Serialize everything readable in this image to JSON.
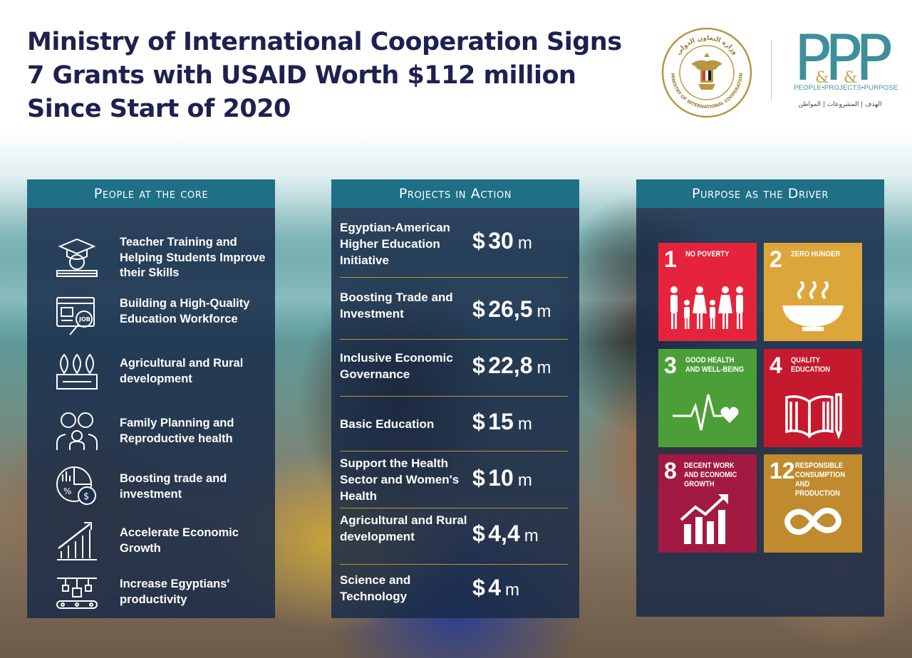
{
  "headline": "Ministry of International Cooperation Signs 7 Grants with USAID Worth $112 million Since Start of 2020",
  "seal": {
    "text_top": "وزارة التعاون الدولي",
    "text_bottom": "MINISTRY OF INTERNATIONAL COOPERATION"
  },
  "ppp_logo": {
    "letters": "PPP",
    "tagline": "PEOPLE•PROJECTS•PURPOSE",
    "arabic": "الهدف | المشروعات | المواطن",
    "color": "#3e8f99"
  },
  "panels": {
    "people": {
      "title": "People at the core",
      "items": [
        {
          "icon": "teacher-training-icon",
          "text": "Teacher Training and Helping Students Improve their Skills"
        },
        {
          "icon": "job-search-icon",
          "text": "Building a High-Quality Education Workforce"
        },
        {
          "icon": "agriculture-icon",
          "text": "Agricultural and Rural development"
        },
        {
          "icon": "family-icon",
          "text": "Family Planning and Reproductive health"
        },
        {
          "icon": "trade-investment-icon",
          "text": "Boosting trade and investment"
        },
        {
          "icon": "growth-chart-icon",
          "text": "Accelerate Economic Growth"
        },
        {
          "icon": "productivity-icon",
          "text": "Increase Egyptians' productivity"
        }
      ]
    },
    "projects": {
      "title": "Projects in Action",
      "currency": "$",
      "unit": "m",
      "rows": [
        {
          "name": "Egyptian-American Higher Education Initiative",
          "amount": "30"
        },
        {
          "name": "Boosting Trade and Investment",
          "amount": "26,5"
        },
        {
          "name": "Inclusive Economic Governance",
          "amount": "22,8"
        },
        {
          "name": "Basic Education",
          "amount": "15"
        },
        {
          "name": "Support the Health Sector and Women's Health",
          "amount": "10"
        },
        {
          "name": "Agricultural and Rural development",
          "amount": "4,4"
        },
        {
          "name": "Science and Technology",
          "amount": "4"
        }
      ]
    },
    "purpose": {
      "title": "Purpose as the Driver",
      "goals": [
        {
          "number": "1",
          "label": "No Poverty",
          "color": "#e5243b"
        },
        {
          "number": "2",
          "label": "Zero Hunger",
          "color": "#dda63a"
        },
        {
          "number": "3",
          "label": "Good Health and Well-Being",
          "color": "#4c9f38"
        },
        {
          "number": "4",
          "label": "Quality Education",
          "color": "#c5192d"
        },
        {
          "number": "8",
          "label": "Decent Work and Economic Growth",
          "color": "#a21942"
        },
        {
          "number": "12",
          "label": "Responsible Consumption and Production",
          "color": "#bf8b2e"
        }
      ]
    }
  },
  "colors": {
    "headline": "#1d2150",
    "panel_header": "#1f6f86",
    "separator": "#b8962e"
  }
}
